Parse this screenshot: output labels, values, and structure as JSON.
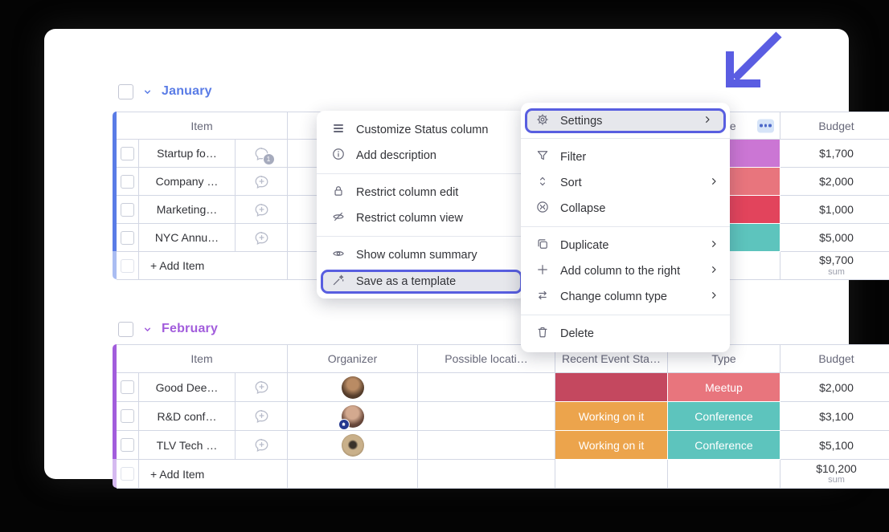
{
  "board": {
    "column_headers": [
      "Item",
      "Organizer",
      "Possible locati…",
      "Recent Event Sta…",
      "Type",
      "Budget"
    ],
    "groups": [
      {
        "name": "January",
        "color": "#5a7ce6",
        "light_color": "#aabdf2",
        "add_item_label": "+ Add Item",
        "sum_value": "$9,700",
        "sum_label": "sum",
        "rows": [
          {
            "item": "Startup fo…",
            "chat_icon": "update-bubble-icon",
            "chat_badge": "1",
            "avatar": "woman-dark-hair",
            "guest_badge": true,
            "status_label": "",
            "status_color": "#d84a5e",
            "type_label": "",
            "type_color": "#cb76d4",
            "budget": "$1,700"
          },
          {
            "item": "Company …",
            "chat_icon": "add-update-icon",
            "chat_badge": "",
            "avatar": "woman-tan",
            "guest_badge": false,
            "status_label": "",
            "status_color": "",
            "type_label": "",
            "type_color": "#e8757d",
            "budget": "$2,000"
          },
          {
            "item": "Marketing…",
            "chat_icon": "add-update-icon",
            "chat_badge": "",
            "avatar": "woman-shadow",
            "guest_badge": false,
            "status_label": "",
            "status_color": "",
            "type_label": "",
            "type_color": "#e2445c",
            "budget": "$1,000"
          },
          {
            "item": "NYC Annu…",
            "chat_icon": "add-update-icon",
            "chat_badge": "",
            "avatar": "woman-shadow",
            "guest_badge": false,
            "status_label": "",
            "status_color": "",
            "type_label": "",
            "type_color": "#5dc4bd",
            "budget": "$5,000"
          }
        ]
      },
      {
        "name": "February",
        "color": "#a25ddc",
        "light_color": "#d5baf0",
        "add_item_label": "+ Add Item",
        "sum_value": "$10,200",
        "sum_label": "sum",
        "rows": [
          {
            "item": "Good Dee…",
            "chat_icon": "add-update-icon",
            "chat_badge": "",
            "avatar": "woman-curly",
            "guest_badge": false,
            "status_label": "",
            "status_color": "#c4485f",
            "type_label": "Meetup",
            "type_color": "#e8757d",
            "budget": "$2,000"
          },
          {
            "item": "R&D conf…",
            "chat_icon": "add-update-icon",
            "chat_badge": "",
            "avatar": "woman-guest",
            "guest_badge": true,
            "status_label": "Working on it",
            "status_color": "#eca44c",
            "type_label": "Conference",
            "type_color": "#5dc4bd",
            "budget": "$3,100"
          },
          {
            "item": "TLV Tech …",
            "chat_icon": "add-update-icon",
            "chat_badge": "",
            "avatar": "pug-dog",
            "guest_badge": false,
            "status_label": "Working on it",
            "status_color": "#eca44c",
            "type_label": "Conference",
            "type_color": "#5dc4bd",
            "budget": "$5,100"
          }
        ]
      }
    ]
  },
  "menus": {
    "column_settings": {
      "items": [
        {
          "icon": "customize-icon",
          "label": "Customize Status column",
          "divider": false,
          "submenu": false,
          "highlighted": false
        },
        {
          "icon": "info-icon",
          "label": "Add description",
          "divider": false,
          "submenu": false,
          "highlighted": false
        },
        {
          "icon": "",
          "label": "",
          "divider": true,
          "submenu": false,
          "highlighted": false
        },
        {
          "icon": "lock-icon",
          "label": "Restrict column edit",
          "divider": false,
          "submenu": false,
          "highlighted": false
        },
        {
          "icon": "eye-off-icon",
          "label": "Restrict column view",
          "divider": false,
          "submenu": false,
          "highlighted": false
        },
        {
          "icon": "",
          "label": "",
          "divider": true,
          "submenu": false,
          "highlighted": false
        },
        {
          "icon": "eye-icon",
          "label": "Show column summary",
          "divider": false,
          "submenu": false,
          "highlighted": false
        },
        {
          "icon": "wand-icon",
          "label": "Save as a template",
          "divider": false,
          "submenu": false,
          "highlighted": true
        }
      ]
    },
    "column_actions": {
      "items": [
        {
          "icon": "gear-icon",
          "label": "Settings",
          "divider": false,
          "submenu": true,
          "highlighted": true
        },
        {
          "icon": "",
          "label": "",
          "divider": true,
          "submenu": false,
          "highlighted": false
        },
        {
          "icon": "filter-icon",
          "label": "Filter",
          "divider": false,
          "submenu": false,
          "highlighted": false
        },
        {
          "icon": "sort-icon",
          "label": "Sort",
          "divider": false,
          "submenu": true,
          "highlighted": false
        },
        {
          "icon": "collapse-icon",
          "label": "Collapse",
          "divider": false,
          "submenu": false,
          "highlighted": false
        },
        {
          "icon": "",
          "label": "",
          "divider": true,
          "submenu": false,
          "highlighted": false
        },
        {
          "icon": "duplicate-icon",
          "label": "Duplicate",
          "divider": false,
          "submenu": true,
          "highlighted": false
        },
        {
          "icon": "plus-icon",
          "label": "Add column to the right",
          "divider": false,
          "submenu": true,
          "highlighted": false
        },
        {
          "icon": "swap-icon",
          "label": "Change column type",
          "divider": false,
          "submenu": true,
          "highlighted": false
        },
        {
          "icon": "",
          "label": "",
          "divider": true,
          "submenu": false,
          "highlighted": false
        },
        {
          "icon": "trash-icon",
          "label": "Delete",
          "divider": false,
          "submenu": false,
          "highlighted": false
        }
      ]
    }
  },
  "colors": {
    "highlight": "#585ee0",
    "arrow": "#5a5de2",
    "dots_button_bg": "#d6e4f8",
    "dots_color": "#4c68c9"
  }
}
